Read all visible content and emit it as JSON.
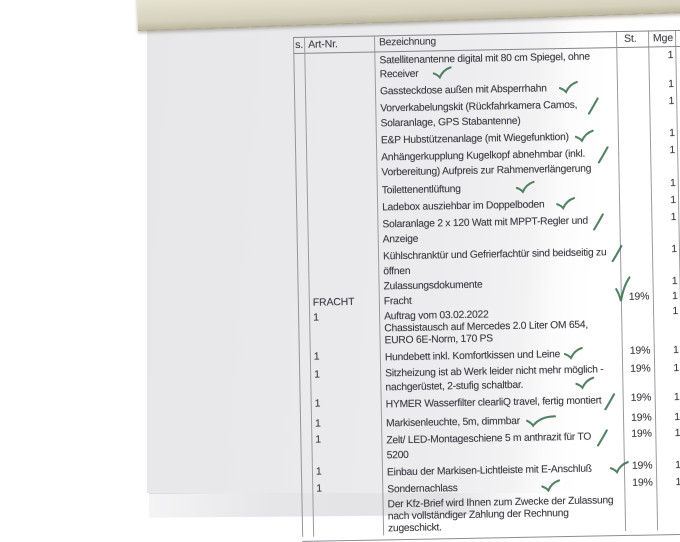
{
  "colors": {
    "check_green": "#3c7150",
    "paper": "#e9e9eb",
    "band_paper": "#ddd9c8",
    "table_line": "#9b9b9f",
    "text": "#3c3d42"
  },
  "table": {
    "headers": {
      "pos": "s.",
      "art_nr": "Art-Nr.",
      "description": "Bezeichnung",
      "tax": "St.",
      "qty": "Mge"
    },
    "rows": [
      {
        "art": "",
        "lines": [
          "Satellitenantenne digital mit 80 cm Spiegel, ohne",
          "Receiver"
        ],
        "tax": "",
        "qty": "1",
        "check": {
          "style": "tick",
          "line": 1,
          "indent": 14
        }
      },
      {
        "art": "",
        "lines": [
          "Gassteckdose außen mit Absperrhahn"
        ],
        "tax": "",
        "qty": "1",
        "check": {
          "style": "tick",
          "line": 0,
          "indent": 12
        }
      },
      {
        "art": "",
        "lines": [
          "Vorverkabelungskit (Rückfahrkamera Camos,",
          "Solaranlage, GPS Stabantenne)"
        ],
        "tax": "",
        "qty": "1",
        "check": {
          "style": "slash",
          "line": 0,
          "indent": 10
        }
      },
      {
        "art": "",
        "lines": [
          "E&P Hubstützenanlage (mit Wiegefunktion)"
        ],
        "tax": "",
        "qty": "1",
        "check": {
          "style": "tick",
          "line": 0,
          "indent": 6
        }
      },
      {
        "art": "",
        "lines": [
          "Anhängerkupplung Kugelkopf abnehmbar (inkl.",
          "Vorbereitung) Aufpreis zur Rahmenverlängerung"
        ],
        "tax": "",
        "qty": "1",
        "check": {
          "style": "slash",
          "line": 0,
          "indent": 12
        }
      },
      {
        "art": "",
        "lines": [
          "Toilettenentlüftung"
        ],
        "tax": "",
        "qty": "1",
        "check": {
          "style": "tick",
          "line": 0,
          "indent": 55
        }
      },
      {
        "art": "",
        "lines": [
          "Ladebox ausziehbar im Doppelboden"
        ],
        "tax": "",
        "qty": "1",
        "check": {
          "style": "tick",
          "line": 0,
          "indent": 12
        }
      },
      {
        "art": "",
        "lines": [
          "Solaranlage 2 x 120 Watt mit MPPT-Regler und",
          "Anzeige"
        ],
        "tax": "",
        "qty": "1",
        "check": {
          "style": "slash",
          "line": 0,
          "indent": 4
        }
      },
      {
        "art": "",
        "lines": [
          "Kühlschranktür und Gefrierfachtür sind beidseitig zu",
          "öffnen"
        ],
        "tax": "",
        "qty": "1",
        "check": {
          "style": "slash",
          "line": 0,
          "indent": 5
        }
      },
      {
        "art": "",
        "lines": [
          "Zulassungsdokumente"
        ],
        "tax": "",
        "qty": "1",
        "check": null
      },
      {
        "art": "FRACHT",
        "lines": [
          "Fracht"
        ],
        "tax": "19%",
        "qty": "1",
        "check": {
          "style": "big",
          "at": "tax"
        }
      },
      {
        "art": "1",
        "lines": [
          "Auftrag vom 03.02.2022",
          "Chassistausch auf Mercedes 2.0 Liter OM 654,",
          "EURO 6E-Norm, 170 PS"
        ],
        "tax": "",
        "qty": "1",
        "check": null
      },
      {
        "art": "1",
        "lines": [
          "Hundebett inkl. Komfortkissen und Leine"
        ],
        "tax": "19%",
        "qty": "1",
        "check": {
          "style": "tick",
          "line": 0,
          "indent": 4
        }
      },
      {
        "art": "1",
        "lines": [
          "Sitzheizung ist ab Werk leider nicht mehr möglich -",
          "nachgerüstet, 2-stufig schaltbar."
        ],
        "tax": "19%",
        "qty": "1",
        "check": {
          "style": "tick",
          "line": 1,
          "indent": 52
        }
      },
      {
        "art": "1",
        "lines": [
          "HYMER Wasserfilter clearliQ travel, fertig montiert"
        ],
        "tax": "19%",
        "qty": "1",
        "check": {
          "style": "slash",
          "line": 0,
          "indent": 2
        }
      },
      {
        "art": "1",
        "lines": [
          "Markisenleuchte, 5m, dimmbar"
        ],
        "tax": "19%",
        "qty": "1",
        "check": {
          "style": "long",
          "line": 0,
          "indent": 6
        }
      },
      {
        "art": "1",
        "lines": [
          "Zelt/ LED-Montageschiene 5 m anthrazit für TO",
          "5200"
        ],
        "tax": "19%",
        "qty": "1",
        "check": {
          "style": "slash",
          "line": 0,
          "indent": 5
        }
      },
      {
        "art": "1",
        "lines": [
          "Einbau der Markisen-Lichtleiste mit E-Anschluß"
        ],
        "tax": "19%",
        "qty": "1",
        "check": {
          "style": "tick",
          "line": 0,
          "indent": 18
        }
      },
      {
        "art": "1",
        "lines": [
          "Sondernachlass"
        ],
        "tax": "19%",
        "qty": "1",
        "check": {
          "style": "tick",
          "line": 0,
          "indent": 84
        }
      },
      {
        "art": "",
        "lines": [
          "Der Kfz-Brief wird Ihnen zum Zwecke der Zulassung",
          "nach vollständiger Zahlung der Rechnung",
          "zugeschickt."
        ],
        "tax": "",
        "qty": "",
        "check": null
      }
    ]
  }
}
